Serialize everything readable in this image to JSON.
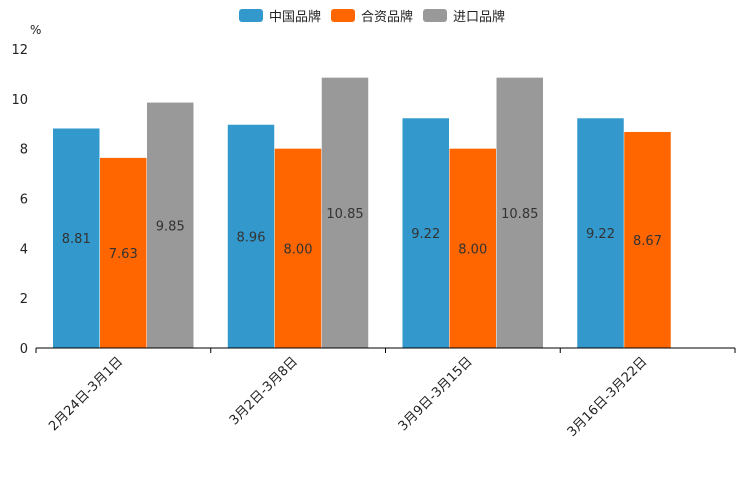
{
  "chart_data": {
    "type": "bar",
    "unit_label": "%",
    "categories": [
      "2月24日-3月1日",
      "3月2日-3月8日",
      "3月9日-3月15日",
      "3月16日-3月22日"
    ],
    "series": [
      {
        "name": "中国品牌",
        "color": "#3399cc",
        "values": [
          8.81,
          8.96,
          9.22,
          9.22
        ]
      },
      {
        "name": "合资品牌",
        "color": "#ff6600",
        "values": [
          7.63,
          8.0,
          8.0,
          8.67
        ]
      },
      {
        "name": "进口品牌",
        "color": "#999999",
        "values": [
          9.85,
          10.85,
          10.85,
          null
        ]
      }
    ],
    "ylim": [
      0,
      12
    ],
    "yticks": [
      0,
      2,
      4,
      6,
      8,
      10,
      12
    ],
    "legend_position": "top-center",
    "grid": false
  }
}
